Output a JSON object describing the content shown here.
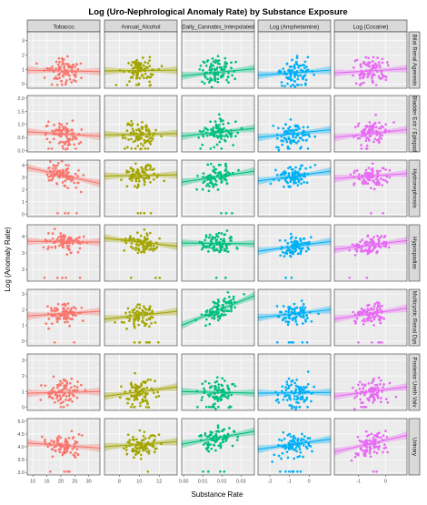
{
  "title": "Log (Uro-Nephrological Anomaly Rate) by Substance Exposure",
  "xlabel": "Substance Rate",
  "ylabel": "Log (Anomaly Rate)",
  "chart_data": {
    "type": "scatter",
    "columns": [
      {
        "name": "Tobacco",
        "color": "#F8766D",
        "xlim": [
          8,
          34
        ],
        "ticks": [
          10,
          15,
          20,
          25,
          30
        ]
      },
      {
        "name": "Annual_Alcohol",
        "color": "#A3A500",
        "xlim": [
          6.5,
          13.8
        ],
        "ticks": [
          8,
          10,
          12
        ]
      },
      {
        "name": "Daily_Cannabis_Interpolated",
        "color": "#00BF7D",
        "xlim": [
          -0.001,
          0.037
        ],
        "ticks": [
          0.0,
          0.01,
          0.02,
          0.03
        ],
        "tick_labels": [
          "0.00",
          "0.01",
          "0.02",
          "0.03"
        ]
      },
      {
        "name": "Log (Amphetamine)",
        "color": "#00B0F6",
        "xlim": [
          -2.6,
          1.1
        ],
        "ticks": [
          -2,
          -1,
          0
        ]
      },
      {
        "name": "Log (Cocaine)",
        "color": "#E76BF3",
        "xlim": [
          -1.9,
          0.8
        ],
        "ticks": [
          -1,
          0
        ]
      }
    ],
    "rows": [
      {
        "name": "Bilat Renal Agenesis",
        "ylim": [
          -0.3,
          3.6
        ],
        "ticks": [
          0,
          1,
          2,
          3
        ],
        "center": 1.0,
        "spread": 0.8,
        "trend": [
          [
            0.95,
            0.85
          ],
          [
            0.9,
            0.95
          ],
          [
            0.55,
            1.05
          ],
          [
            0.6,
            0.95
          ],
          [
            0.75,
            1.05
          ]
        ]
      },
      {
        "name": "Bladder Extr / Epispad",
        "ylim": [
          -0.05,
          2.1
        ],
        "ticks": [
          0.0,
          0.5,
          1.0,
          1.5,
          2.0
        ],
        "tick_labels": [
          "0.0",
          "0.5",
          "1.0",
          "1.5",
          "2.0"
        ],
        "center": 0.65,
        "spread": 0.4,
        "trend": [
          [
            0.72,
            0.55
          ],
          [
            0.6,
            0.65
          ],
          [
            0.55,
            0.85
          ],
          [
            0.5,
            0.8
          ],
          [
            0.5,
            0.8
          ]
        ]
      },
      {
        "name": "Hydronephrosis",
        "ylim": [
          -0.2,
          4.4
        ],
        "ticks": [
          0,
          1,
          2,
          3,
          4
        ],
        "center": 3.2,
        "spread": 0.8,
        "trend": [
          [
            3.8,
            2.5
          ],
          [
            3.1,
            3.2
          ],
          [
            2.6,
            3.5
          ],
          [
            2.7,
            3.5
          ],
          [
            2.9,
            3.3
          ]
        ]
      },
      {
        "name": "Hypospadias",
        "ylim": [
          1.3,
          4.7
        ],
        "ticks": [
          2,
          3,
          4
        ],
        "center": 3.6,
        "spread": 0.5,
        "trend": [
          [
            3.7,
            3.65
          ],
          [
            3.9,
            3.4
          ],
          [
            3.6,
            3.55
          ],
          [
            3.1,
            3.7
          ],
          [
            3.2,
            3.75
          ]
        ]
      },
      {
        "name": "Multicystic Renal Dys",
        "ylim": [
          -0.3,
          3.3
        ],
        "ticks": [
          0,
          1,
          2,
          3
        ],
        "center": 1.8,
        "spread": 0.6,
        "trend": [
          [
            1.6,
            1.9
          ],
          [
            1.4,
            1.9
          ],
          [
            1.0,
            2.9
          ],
          [
            1.5,
            2.0
          ],
          [
            1.4,
            2.1
          ]
        ]
      },
      {
        "name": "Posterior Ureth Valv",
        "ylim": [
          -0.2,
          3.4
        ],
        "ticks": [
          0,
          1,
          2,
          3
        ],
        "center": 0.9,
        "spread": 0.8,
        "trend": [
          [
            0.9,
            1.0
          ],
          [
            0.7,
            1.3
          ],
          [
            1.0,
            0.9
          ],
          [
            0.9,
            0.95
          ],
          [
            0.7,
            1.3
          ]
        ]
      },
      {
        "name": "Urinary",
        "ylim": [
          2.9,
          5.1
        ],
        "ticks": [
          3.0,
          3.5,
          4.0,
          4.5,
          5.0
        ],
        "tick_labels": [
          "3.0",
          "3.5",
          "4.0",
          "4.5",
          "5.0"
        ],
        "center": 4.1,
        "spread": 0.4,
        "trend": [
          [
            4.15,
            3.95
          ],
          [
            4.0,
            4.2
          ],
          [
            4.1,
            4.6
          ],
          [
            3.9,
            4.3
          ],
          [
            3.8,
            4.45
          ]
        ]
      }
    ],
    "points_per_panel": 90,
    "grid": true,
    "panel_background": "#EBEBEB",
    "strip_background": "#D9D9D9"
  }
}
